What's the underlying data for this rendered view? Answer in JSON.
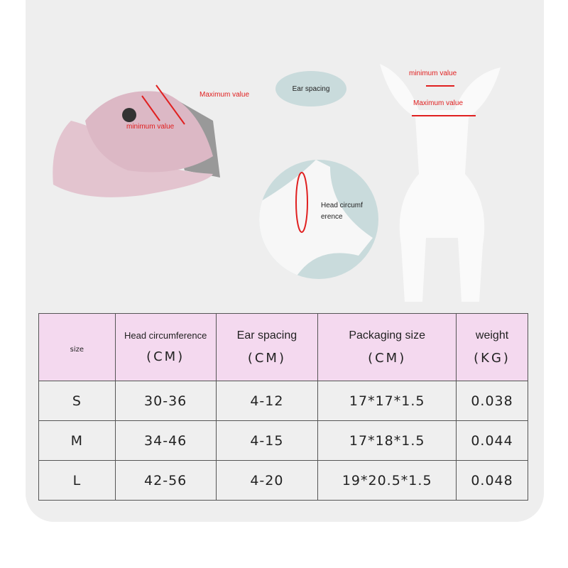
{
  "diagram": {
    "cap_max_label": "Maximum value",
    "cap_min_label": "minimum value",
    "ear_spacing_label": "Ear spacing",
    "head_circ_label_line1": "Head circumf",
    "head_circ_label_line2": "erence",
    "dog_min_label": "minimum value",
    "dog_max_label": "Maximum value"
  },
  "table": {
    "headers": [
      {
        "title": "size",
        "unit": ""
      },
      {
        "title": "Head circumference",
        "unit": "(CM)"
      },
      {
        "title": "Ear spacing",
        "unit": "(CM)"
      },
      {
        "title": "Packaging size",
        "unit": "(CM)"
      },
      {
        "title": "weight",
        "unit": "(KG)"
      }
    ],
    "rows": [
      [
        "S",
        "30-36",
        "4-12",
        "17*17*1.5",
        "0.038"
      ],
      [
        "M",
        "34-46",
        "4-15",
        "17*18*1.5",
        "0.044"
      ],
      [
        "L",
        "42-56",
        "4-20",
        "19*20.5*1.5",
        "0.048"
      ]
    ]
  },
  "colors": {
    "header_bg": "#f4d9ef",
    "annotation": "#e02020",
    "accent_circle": "#c9dbdc",
    "cap": "#e3c4cf"
  }
}
